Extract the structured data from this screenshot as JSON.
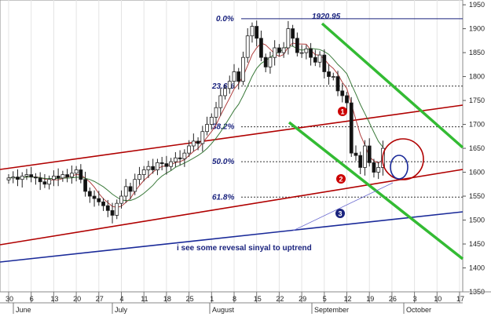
{
  "chart_data": {
    "type": "candlestick",
    "y_axis": {
      "side": "right",
      "ylim": [
        1350,
        1960
      ],
      "ticks": [
        1350,
        1400,
        1450,
        1500,
        1550,
        1600,
        1650,
        1700,
        1750,
        1800,
        1850,
        1900,
        1950
      ]
    },
    "x_axis": {
      "day_ticks": [
        "30",
        "6",
        "13",
        "20",
        "27",
        "4",
        "11",
        "18",
        "25",
        "1",
        "8",
        "15",
        "22",
        "29",
        "5",
        "12",
        "19",
        "26",
        "3",
        "10",
        "17"
      ],
      "month_labels": [
        "June",
        "July",
        "August",
        "September",
        "October"
      ]
    },
    "fib_levels": [
      {
        "label": "0.0%",
        "value": 1920.95
      },
      {
        "label": "23.6%",
        "value": 1780
      },
      {
        "label": "38.2%",
        "value": 1695
      },
      {
        "label": "50.0%",
        "value": 1622
      },
      {
        "label": "61.8%",
        "value": 1548
      }
    ],
    "peak_label": "1920.95",
    "channel_markers": [
      {
        "number": "1",
        "color": "#cc0000"
      },
      {
        "number": "2",
        "color": "#cc0000"
      },
      {
        "number": "3",
        "color": "#1a237e"
      }
    ],
    "annotation": "i see some revesal sinyal to uptrend",
    "colors": {
      "up_candle": "#ffffff",
      "down_candle": "#111111",
      "red_channel": "#b00000",
      "green_channel": "#33bb33",
      "blue_trend": "#1a2a99",
      "fib_text": "#1a237e",
      "ma_fast": "#b04040",
      "ma_slow": "#3a7a3a"
    },
    "approx_closes": [
      1588,
      1590,
      1585,
      1592,
      1595,
      1590,
      1588,
      1580,
      1575,
      1585,
      1592,
      1588,
      1595,
      1590,
      1598,
      1605,
      1585,
      1560,
      1550,
      1545,
      1538,
      1530,
      1520,
      1510,
      1535,
      1550,
      1570,
      1560,
      1585,
      1595,
      1605,
      1612,
      1605,
      1620,
      1618,
      1612,
      1622,
      1630,
      1628,
      1640,
      1655,
      1665,
      1660,
      1685,
      1700,
      1715,
      1735,
      1760,
      1775,
      1790,
      1810,
      1790,
      1840,
      1885,
      1905,
      1880,
      1840,
      1820,
      1840,
      1860,
      1850,
      1860,
      1900,
      1880,
      1850,
      1850,
      1858,
      1840,
      1830,
      1845,
      1810,
      1800,
      1800,
      1770,
      1760,
      1745,
      1640,
      1635,
      1610,
      1655,
      1620,
      1600,
      1610,
      1650
    ]
  }
}
